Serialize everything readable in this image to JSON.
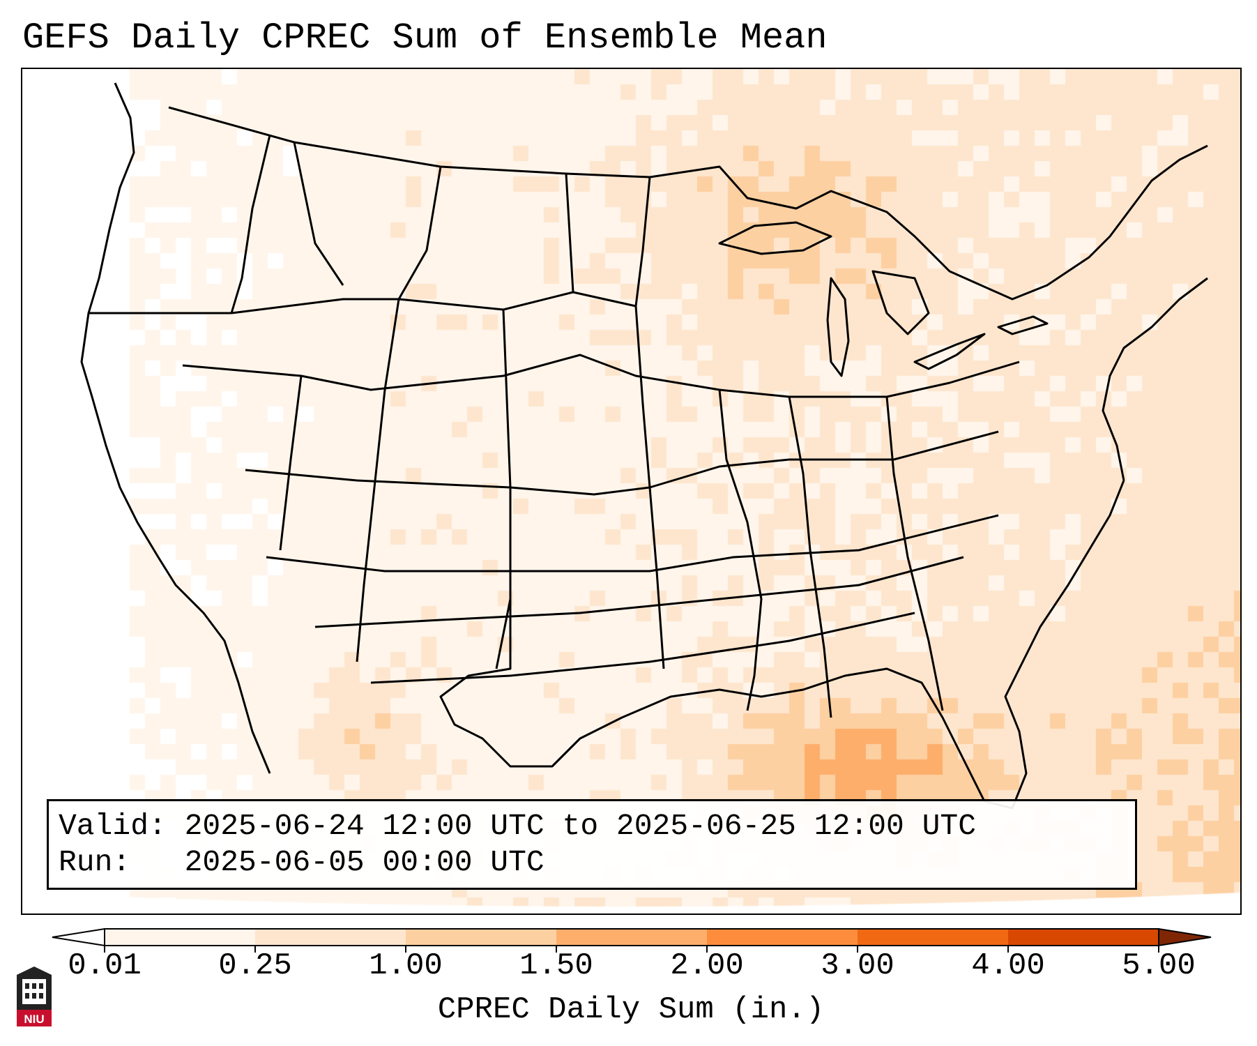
{
  "title": "GEFS Daily CPREC Sum of Ensemble Mean",
  "info_box": {
    "valid_line": "Valid: 2025-06-24 12:00 UTC to 2025-06-25 12:00 UTC",
    "run_line": "Run:   2025-06-05 00:00 UTC"
  },
  "colorbar": {
    "label": "CPREC Daily Sum (in.)",
    "ticks": [
      "0.01",
      "0.25",
      "1.00",
      "1.50",
      "2.00",
      "3.00",
      "4.00",
      "5.00"
    ],
    "colors": [
      "#fff5eb",
      "#fee6ce",
      "#fdd0a2",
      "#fdae6b",
      "#fd8d3c",
      "#f16913",
      "#d94801",
      "#8c2d04"
    ],
    "under_color": "#ffffff",
    "over_color": "#7f2704",
    "extend": "both"
  },
  "logo": {
    "text": "NIU",
    "icon": "niu-logo-icon"
  },
  "map": {
    "projection": "lambert-conformal",
    "region": "CONUS",
    "field": "GEFS ensemble-mean convective precipitation, daily sum"
  }
}
